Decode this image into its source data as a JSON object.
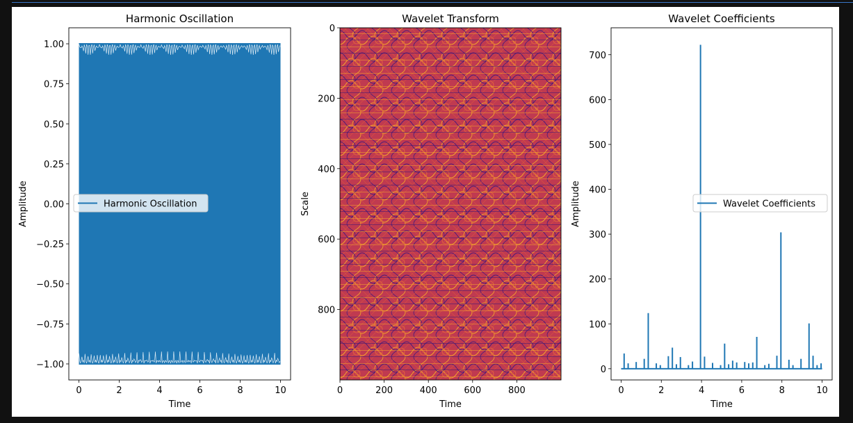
{
  "colors": {
    "series": "#1f77b4",
    "heat_low": "#3b1676",
    "heat_mid": "#c73b4f",
    "heat_high": "#f2a12b"
  },
  "chart_data": [
    {
      "type": "line",
      "title": "Harmonic Oscillation",
      "xlabel": "Time",
      "ylabel": "Amplitude",
      "xlim": [
        -0.5,
        10.5
      ],
      "ylim": [
        -1.1,
        1.1
      ],
      "xticks": [
        0,
        2,
        4,
        6,
        8,
        10
      ],
      "xtick_labels": [
        "0",
        "2",
        "4",
        "6",
        "8",
        "10"
      ],
      "yticks": [
        1.0,
        0.75,
        0.5,
        0.25,
        0.0,
        -0.25,
        -0.5,
        -0.75,
        -1.0
      ],
      "ytick_labels": [
        "1.00",
        "0.75",
        "0.50",
        "0.25",
        "0.00",
        "−0.25",
        "−0.50",
        "−0.75",
        "−1.00"
      ],
      "legend": "center-left",
      "series": [
        {
          "name": "Harmonic Oscillation",
          "function": "sin(2*pi*f*t), dense oscillation filling [-1, 1]",
          "x_range": [
            0,
            10
          ],
          "y_range": [
            -1,
            1
          ]
        }
      ]
    },
    {
      "type": "heatmap",
      "title": "Wavelet Transform",
      "xlabel": "Time",
      "ylabel": "Scale",
      "xlim": [
        0,
        1000
      ],
      "ylim": [
        1000,
        0
      ],
      "xticks": [
        0,
        200,
        400,
        600,
        800
      ],
      "xtick_labels": [
        "0",
        "200",
        "400",
        "600",
        "800"
      ],
      "yticks": [
        0,
        200,
        400,
        600,
        800
      ],
      "ytick_labels": [
        "0",
        "200",
        "400",
        "600",
        "800"
      ],
      "colormap": "plasma-like (purple / red / orange)",
      "pattern": "fine periodic interference pattern"
    },
    {
      "type": "line",
      "title": "Wavelet Coefficients",
      "xlabel": "Time",
      "ylabel": "Amplitude",
      "xlim": [
        -0.5,
        10.5
      ],
      "ylim": [
        -25,
        760
      ],
      "xticks": [
        0,
        2,
        4,
        6,
        8,
        10
      ],
      "xtick_labels": [
        "0",
        "2",
        "4",
        "6",
        "8",
        "10"
      ],
      "yticks": [
        0,
        100,
        200,
        300,
        400,
        500,
        600,
        700
      ],
      "ytick_labels": [
        "0",
        "100",
        "200",
        "300",
        "400",
        "500",
        "600",
        "700"
      ],
      "legend": "center-right",
      "series": [
        {
          "name": "Wavelet Coefficients",
          "baseline": 0,
          "spikes": [
            {
              "x": 0.15,
              "y": 34
            },
            {
              "x": 0.35,
              "y": 12
            },
            {
              "x": 0.75,
              "y": 15
            },
            {
              "x": 1.15,
              "y": 22
            },
            {
              "x": 1.35,
              "y": 124
            },
            {
              "x": 1.75,
              "y": 12
            },
            {
              "x": 1.95,
              "y": 8
            },
            {
              "x": 2.35,
              "y": 28
            },
            {
              "x": 2.55,
              "y": 47
            },
            {
              "x": 2.75,
              "y": 10
            },
            {
              "x": 2.95,
              "y": 26
            },
            {
              "x": 3.35,
              "y": 8
            },
            {
              "x": 3.55,
              "y": 16
            },
            {
              "x": 3.95,
              "y": 722
            },
            {
              "x": 4.15,
              "y": 27
            },
            {
              "x": 4.55,
              "y": 13
            },
            {
              "x": 4.95,
              "y": 8
            },
            {
              "x": 5.15,
              "y": 56
            },
            {
              "x": 5.35,
              "y": 10
            },
            {
              "x": 5.55,
              "y": 18
            },
            {
              "x": 5.75,
              "y": 14
            },
            {
              "x": 6.15,
              "y": 15
            },
            {
              "x": 6.35,
              "y": 12
            },
            {
              "x": 6.55,
              "y": 14
            },
            {
              "x": 6.75,
              "y": 71
            },
            {
              "x": 7.15,
              "y": 8
            },
            {
              "x": 7.35,
              "y": 11
            },
            {
              "x": 7.75,
              "y": 29
            },
            {
              "x": 7.95,
              "y": 304
            },
            {
              "x": 8.35,
              "y": 20
            },
            {
              "x": 8.55,
              "y": 8
            },
            {
              "x": 8.95,
              "y": 22
            },
            {
              "x": 9.35,
              "y": 101
            },
            {
              "x": 9.55,
              "y": 29
            },
            {
              "x": 9.75,
              "y": 8
            },
            {
              "x": 9.95,
              "y": 12
            }
          ]
        }
      ]
    }
  ]
}
